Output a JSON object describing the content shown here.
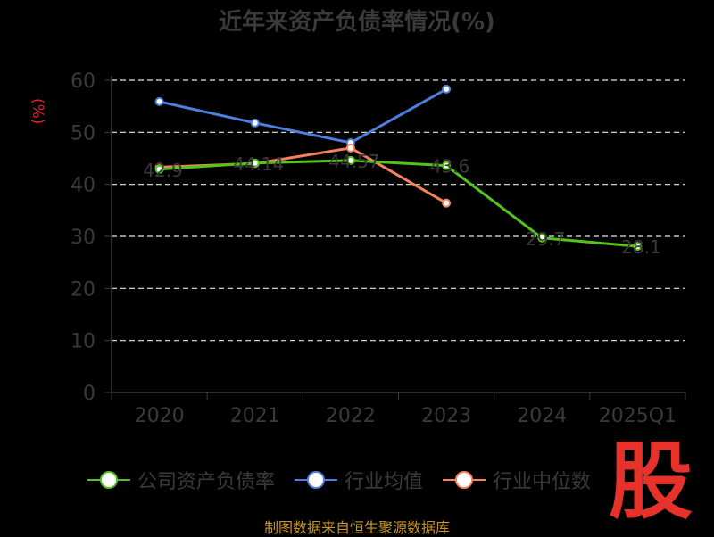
{
  "chart_data": {
    "type": "line",
    "title": "近年来资产负债率情况(%)",
    "ylabel": "(%)",
    "categories": [
      "2020",
      "2021",
      "2022",
      "2023",
      "2024",
      "2025Q1"
    ],
    "y_ticks": [
      "0",
      "10",
      "20",
      "30",
      "40",
      "50",
      "60"
    ],
    "ylim": [
      0,
      60
    ],
    "grid": "horizontal dashed",
    "legend_position": "bottom",
    "series": [
      {
        "name": "公司资产负债率",
        "color": "#52c41a",
        "values": [
          42.9,
          44.1,
          44.6,
          43.6,
          29.7,
          28.1
        ],
        "labels": [
          "42.9",
          "44.14",
          "44.57",
          "43.6",
          "29.7",
          "28.1"
        ]
      },
      {
        "name": "行业均值",
        "color": "#4e7fdf",
        "values": [
          55.9,
          51.8,
          48.0,
          58.3,
          null,
          null
        ]
      },
      {
        "name": "行业中位数",
        "color": "#f4825a",
        "values": [
          43.3,
          44.0,
          47.0,
          36.4,
          null,
          null
        ]
      }
    ]
  },
  "footer": "制图数据来自恒生聚源数据库",
  "logo_text": "股"
}
